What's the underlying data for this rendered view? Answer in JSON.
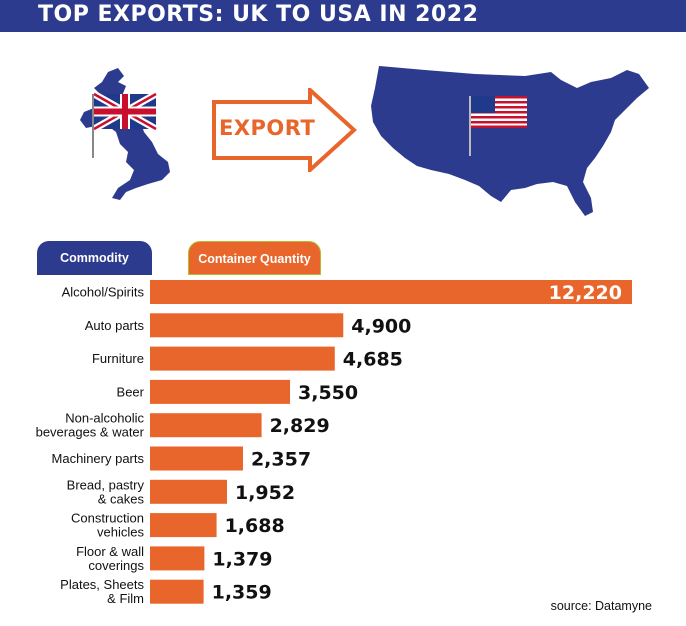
{
  "title": "TOP EXPORTS: UK TO USA IN 2022",
  "graphic": {
    "arrow_label": "EXPORT"
  },
  "header": {
    "commodity_label": "Commodity",
    "quantity_label": "Container Quantity"
  },
  "source": "source: Datamyne",
  "colors": {
    "navy": "#2d3b8e",
    "orange": "#e8662b",
    "white": "#ffffff"
  },
  "chart_data": {
    "type": "bar",
    "orientation": "horizontal",
    "title": "TOP EXPORTS: UK TO USA IN 2022",
    "categories": [
      [
        "Alcohol/Spirits"
      ],
      [
        "Auto parts"
      ],
      [
        "Furniture"
      ],
      [
        "Beer"
      ],
      [
        "Non-alcoholic",
        "beverages & water"
      ],
      [
        "Machinery parts"
      ],
      [
        "Bread, pastry",
        "& cakes"
      ],
      [
        "Construction",
        "vehicles"
      ],
      [
        "Floor & wall",
        "coverings"
      ],
      [
        "Plates, Sheets",
        "& Film"
      ]
    ],
    "values": [
      12220,
      4900,
      4685,
      3550,
      2829,
      2357,
      1952,
      1688,
      1379,
      1359
    ],
    "value_labels": [
      "12,220",
      "4,900",
      "4,685",
      "3,550",
      "2,829",
      "2,357",
      "1,952",
      "1,688",
      "1,379",
      "1,359"
    ],
    "xlim": [
      0,
      12220
    ],
    "grid": false,
    "legend": "none"
  }
}
